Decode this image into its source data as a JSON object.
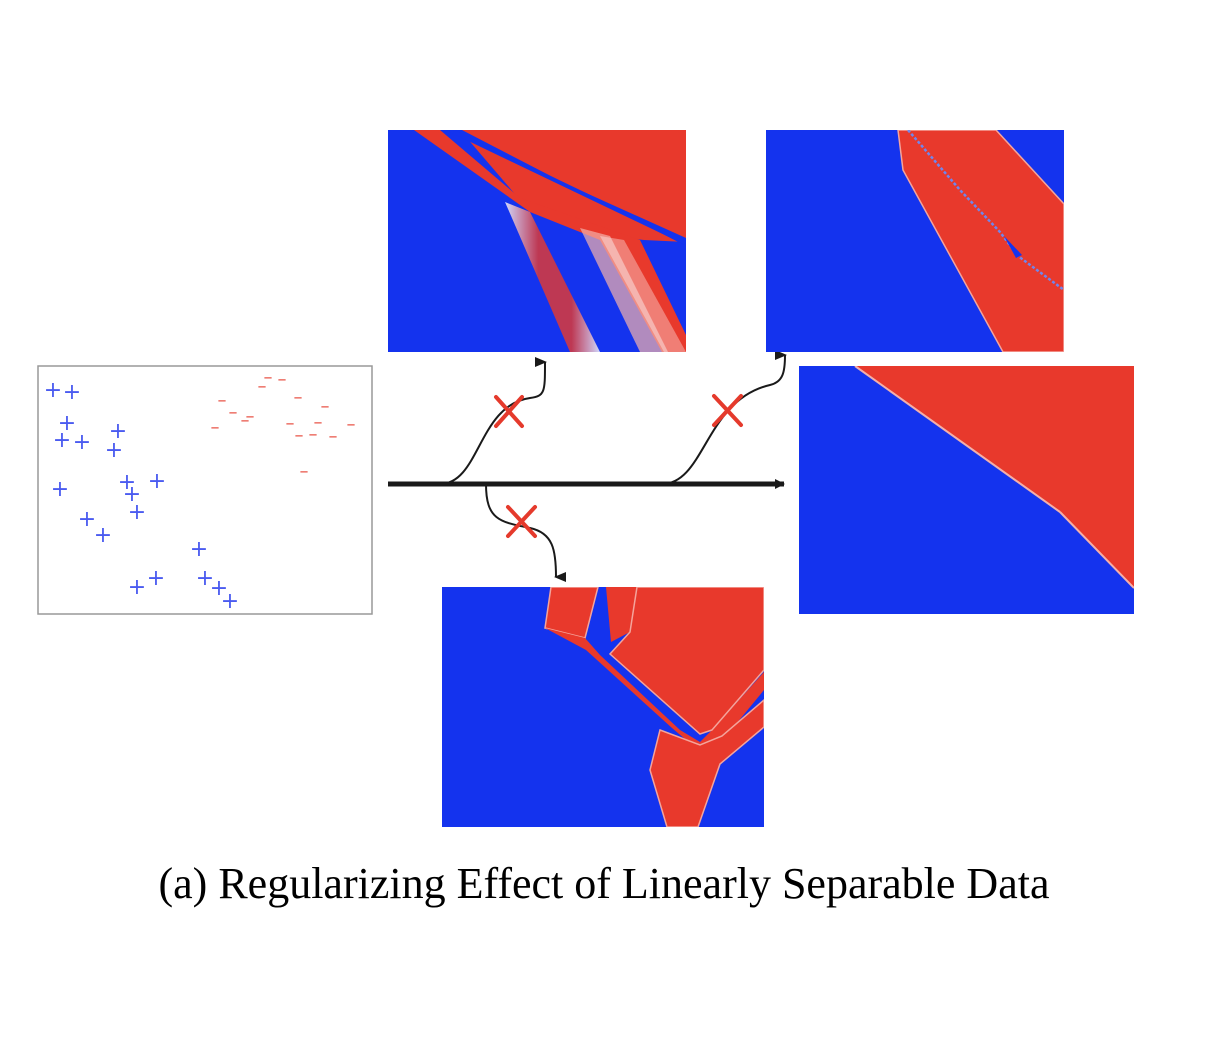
{
  "caption": "(a) Regularizing Effect of Linearly Separable Data",
  "colors": {
    "blue": "#1433ee",
    "red": "#e8392c",
    "plus_marker": "#4a5bf0",
    "minus_marker": "#e8564a",
    "cross": "#e53a2c",
    "arrow": "#1a1a1a",
    "frame": "#999999"
  },
  "markers": {
    "positive": "+",
    "negative": "–"
  },
  "panels": [
    {
      "id": "input-data",
      "content": "scatter of + and – samples"
    },
    {
      "id": "boundary-top-left",
      "content": "irregular decision boundary"
    },
    {
      "id": "boundary-top-right",
      "content": "irregular decision boundary"
    },
    {
      "id": "boundary-bottom",
      "content": "irregular decision boundary"
    },
    {
      "id": "boundary-final",
      "content": "linear decision boundary"
    }
  ],
  "rejected_paths": 3
}
